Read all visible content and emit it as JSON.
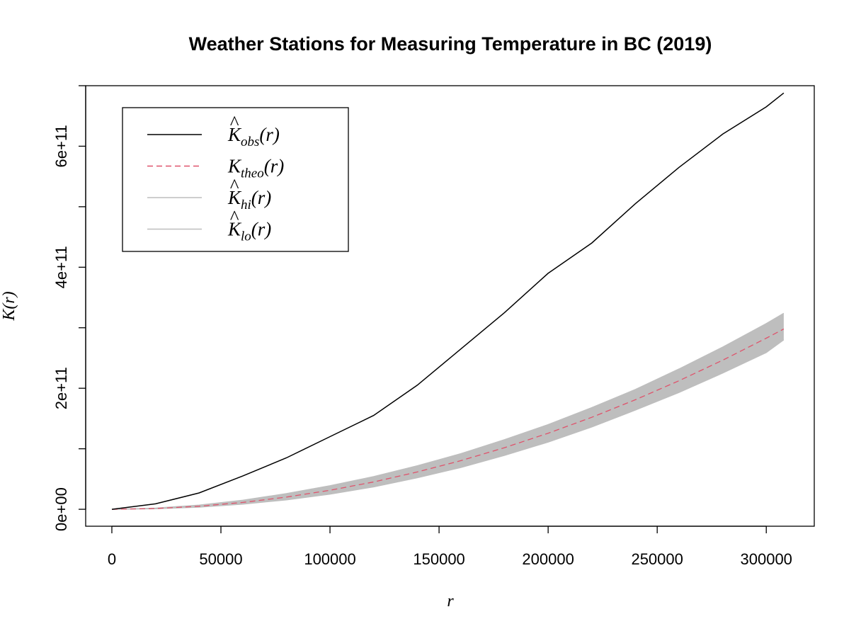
{
  "chart_data": {
    "type": "line",
    "title": "Weather Stations for Measuring Temperature in BC (2019)",
    "xlabel": "r",
    "ylabel": "K(r)",
    "xlim": [
      -12000,
      322000
    ],
    "ylim": [
      -28000000000,
      700000000000
    ],
    "x_ticks": [
      0,
      50000,
      100000,
      150000,
      200000,
      250000,
      300000
    ],
    "x_tick_labels": [
      "0",
      "50000",
      "100000",
      "150000",
      "200000",
      "250000",
      "300000"
    ],
    "y_ticks": [
      0,
      100000000000,
      200000000000,
      300000000000,
      400000000000,
      500000000000,
      600000000000,
      700000000000
    ],
    "y_tick_labels": [
      {
        "value": 0,
        "label": "0e+00"
      },
      {
        "value": 200000000000,
        "label": "2e+11"
      },
      {
        "value": 400000000000,
        "label": "4e+11"
      },
      {
        "value": 600000000000,
        "label": "6e+11"
      }
    ],
    "grid": false,
    "legend_position": "top-left",
    "legend": [
      {
        "base": "K",
        "hat": true,
        "sub": "obs",
        "arg": "(r)",
        "color": "#000000",
        "dash": "solid"
      },
      {
        "base": "K",
        "hat": false,
        "sub": "theo",
        "arg": "(r)",
        "color": "#DF536B",
        "dash": "dashed"
      },
      {
        "base": "K",
        "hat": true,
        "sub": "hi",
        "arg": "(r)",
        "color": "#BEBEBE",
        "dash": "solid"
      },
      {
        "base": "K",
        "hat": true,
        "sub": "lo",
        "arg": "(r)",
        "color": "#BEBEBE",
        "dash": "solid"
      }
    ],
    "x": [
      0,
      20000,
      40000,
      60000,
      80000,
      100000,
      120000,
      140000,
      160000,
      180000,
      200000,
      220000,
      240000,
      260000,
      280000,
      300000,
      308000
    ],
    "series": [
      {
        "key": "obs",
        "color": "#000000",
        "dash": "solid",
        "values": [
          0,
          9000000000,
          27000000000,
          55000000000,
          85000000000,
          120000000000,
          155000000000,
          205000000000,
          265000000000,
          325000000000,
          390000000000,
          440000000000,
          505000000000,
          565000000000,
          620000000000,
          665000000000,
          688000000000
        ]
      },
      {
        "key": "theo",
        "color": "#DF536B",
        "dash": "dashed",
        "values": [
          0,
          1300000000,
          5000000000,
          11300000000,
          20100000000,
          31400000000,
          45200000000,
          61600000000,
          80400000000,
          101800000000,
          125700000000,
          152000000000,
          181000000000,
          212400000000,
          246300000000,
          282700000000,
          298000000000
        ]
      },
      {
        "key": "hi",
        "color": "#BEBEBE",
        "dash": "solid",
        "values": [
          0,
          2000000000,
          7000000000,
          15000000000,
          26000000000,
          39000000000,
          54000000000,
          72000000000,
          92000000000,
          115000000000,
          140000000000,
          168000000000,
          198000000000,
          232000000000,
          268000000000,
          307000000000,
          324000000000
        ]
      },
      {
        "key": "lo",
        "color": "#BEBEBE",
        "dash": "solid",
        "values": [
          0,
          800000000,
          3500000000,
          8500000000,
          15500000000,
          25000000000,
          37000000000,
          52000000000,
          69000000000,
          89000000000,
          111000000000,
          136000000000,
          164000000000,
          193000000000,
          225000000000,
          259000000000,
          280000000000
        ]
      }
    ]
  }
}
